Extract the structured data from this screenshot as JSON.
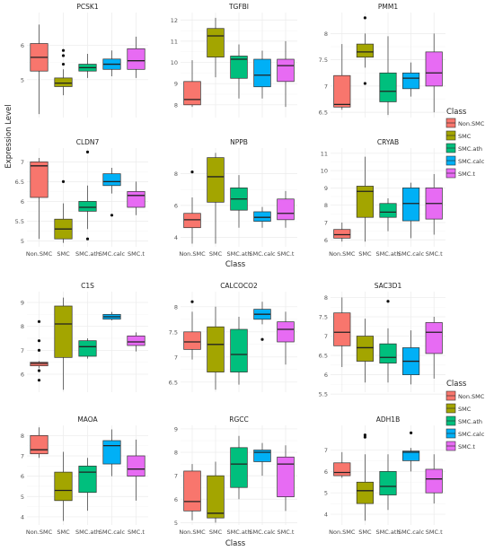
{
  "figure": {
    "y_label": "Expression Level",
    "x_label": "Class",
    "legend_title": "Class"
  },
  "legend": [
    {
      "label": "Non.SMC",
      "color": "#F8766D"
    },
    {
      "label": "SMC",
      "color": "#A3A500"
    },
    {
      "label": "SMC.ath",
      "color": "#00BF7D"
    },
    {
      "label": "SMC.calc",
      "color": "#00B0F6"
    },
    {
      "label": "SMC.t",
      "color": "#E76BF3"
    }
  ],
  "chart_data": [
    {
      "type": "boxplot",
      "title": "PCSK1",
      "categories": [
        "Non.SMC",
        "SMC",
        "SMC.ath",
        "SMC.calc",
        "SMC.t"
      ],
      "y_ticks": [
        5,
        6
      ],
      "ylim": [
        3.9,
        6.95
      ],
      "show_x_ticks": false,
      "boxes": [
        {
          "min": 4.0,
          "q1": 5.25,
          "median": 5.65,
          "q3": 6.05,
          "max": 6.6,
          "outliers": []
        },
        {
          "min": 4.55,
          "q1": 4.8,
          "median": 4.9,
          "q3": 5.05,
          "max": 5.3,
          "outliers": [
            5.85,
            5.7,
            5.45
          ]
        },
        {
          "min": 5.05,
          "q1": 5.25,
          "median": 5.35,
          "q3": 5.45,
          "max": 5.75,
          "outliers": []
        },
        {
          "min": 5.1,
          "q1": 5.3,
          "median": 5.45,
          "q3": 5.6,
          "max": 5.85,
          "outliers": []
        },
        {
          "min": 5.05,
          "q1": 5.3,
          "median": 5.55,
          "q3": 5.9,
          "max": 6.25,
          "outliers": []
        }
      ]
    },
    {
      "type": "boxplot",
      "title": "TGFBI",
      "categories": [
        "Non.SMC",
        "SMC",
        "SMC.ath",
        "SMC.calc",
        "SMC.t"
      ],
      "y_ticks": [
        8,
        9,
        10,
        11,
        12
      ],
      "ylim": [
        7.4,
        12.35
      ],
      "show_x_ticks": false,
      "boxes": [
        {
          "min": 7.9,
          "q1": 8.0,
          "median": 8.25,
          "q3": 9.1,
          "max": 10.1,
          "outliers": []
        },
        {
          "min": 9.3,
          "q1": 10.25,
          "median": 11.25,
          "q3": 11.6,
          "max": 12.1,
          "outliers": []
        },
        {
          "min": 8.3,
          "q1": 9.25,
          "median": 10.15,
          "q3": 10.3,
          "max": 10.85,
          "outliers": []
        },
        {
          "min": 8.3,
          "q1": 8.85,
          "median": 9.4,
          "q3": 10.15,
          "max": 10.55,
          "outliers": []
        },
        {
          "min": 7.9,
          "q1": 9.1,
          "median": 9.85,
          "q3": 10.15,
          "max": 11.0,
          "outliers": []
        }
      ]
    },
    {
      "type": "boxplot",
      "title": "PMM1",
      "categories": [
        "Non.SMC",
        "SMC",
        "SMC.ath",
        "SMC.calc",
        "SMC.t"
      ],
      "y_ticks": [
        6.5,
        7.0,
        7.5,
        8.0
      ],
      "ylim": [
        6.4,
        8.4
      ],
      "show_x_ticks": false,
      "boxes": [
        {
          "min": 6.55,
          "q1": 6.6,
          "median": 6.65,
          "q3": 7.2,
          "max": 7.8,
          "outliers": []
        },
        {
          "min": 7.35,
          "q1": 7.55,
          "median": 7.65,
          "q3": 7.8,
          "max": 8.0,
          "outliers": [
            8.3,
            7.05
          ]
        },
        {
          "min": 6.45,
          "q1": 6.7,
          "median": 6.9,
          "q3": 7.25,
          "max": 7.95,
          "outliers": []
        },
        {
          "min": 6.8,
          "q1": 6.95,
          "median": 7.15,
          "q3": 7.25,
          "max": 7.45,
          "outliers": []
        },
        {
          "min": 6.5,
          "q1": 7.0,
          "median": 7.25,
          "q3": 7.65,
          "max": 8.0,
          "outliers": []
        }
      ]
    },
    {
      "type": "boxplot",
      "title": "CLDN7",
      "categories": [
        "Non.SMC",
        "SMC",
        "SMC.ath",
        "SMC.calc",
        "SMC.t"
      ],
      "y_ticks": [
        5.0,
        5.5,
        6.0,
        6.5,
        7.0
      ],
      "ylim": [
        4.85,
        7.35
      ],
      "show_x_ticks": true,
      "boxes": [
        {
          "min": 5.05,
          "q1": 6.1,
          "median": 6.9,
          "q3": 7.0,
          "max": 7.1,
          "outliers": []
        },
        {
          "min": 4.95,
          "q1": 5.05,
          "median": 5.3,
          "q3": 5.55,
          "max": 5.95,
          "outliers": [
            6.5
          ]
        },
        {
          "min": 5.3,
          "q1": 5.75,
          "median": 5.85,
          "q3": 6.0,
          "max": 6.4,
          "outliers": [
            7.25,
            5.05
          ]
        },
        {
          "min": 6.2,
          "q1": 6.4,
          "median": 6.5,
          "q3": 6.7,
          "max": 6.85,
          "outliers": [
            5.65
          ]
        },
        {
          "min": 5.65,
          "q1": 5.85,
          "median": 6.15,
          "q3": 6.25,
          "max": 6.5,
          "outliers": []
        }
      ]
    },
    {
      "type": "boxplot",
      "title": "NPPB",
      "categories": [
        "Non.SMC",
        "SMC",
        "SMC.ath",
        "SMC.calc",
        "SMC.t"
      ],
      "y_ticks": [
        4,
        6,
        8
      ],
      "ylim": [
        3.4,
        9.6
      ],
      "show_x_ticks": true,
      "boxes": [
        {
          "min": 3.6,
          "q1": 4.6,
          "median": 5.1,
          "q3": 5.5,
          "max": 6.5,
          "outliers": [
            8.1
          ]
        },
        {
          "min": 3.6,
          "q1": 6.2,
          "median": 7.8,
          "q3": 9.0,
          "max": 9.3,
          "outliers": []
        },
        {
          "min": 4.6,
          "q1": 5.7,
          "median": 6.4,
          "q3": 7.1,
          "max": 7.9,
          "outliers": []
        },
        {
          "min": 4.6,
          "q1": 5.0,
          "median": 5.25,
          "q3": 5.6,
          "max": 5.9,
          "outliers": []
        },
        {
          "min": 4.6,
          "q1": 5.1,
          "median": 5.5,
          "q3": 6.4,
          "max": 6.9,
          "outliers": []
        }
      ]
    },
    {
      "type": "boxplot",
      "title": "CRYAB",
      "categories": [
        "Non.SMC",
        "SMC",
        "SMC.ath",
        "SMC.calc",
        "SMC.t"
      ],
      "y_ticks": [
        6,
        7,
        8,
        9,
        10,
        11
      ],
      "ylim": [
        5.6,
        11.3
      ],
      "show_x_ticks": true,
      "boxes": [
        {
          "min": 5.9,
          "q1": 6.1,
          "median": 6.3,
          "q3": 6.6,
          "max": 7.0,
          "outliers": []
        },
        {
          "min": 5.9,
          "q1": 7.3,
          "median": 8.8,
          "q3": 9.1,
          "max": 10.8,
          "outliers": []
        },
        {
          "min": 6.5,
          "q1": 7.3,
          "median": 7.6,
          "q3": 8.1,
          "max": 8.4,
          "outliers": []
        },
        {
          "min": 6.1,
          "q1": 7.1,
          "median": 8.1,
          "q3": 9.0,
          "max": 9.3,
          "outliers": []
        },
        {
          "min": 6.3,
          "q1": 7.2,
          "median": 8.1,
          "q3": 9.0,
          "max": 9.8,
          "outliers": []
        }
      ]
    },
    {
      "type": "boxplot",
      "title": "C1S",
      "categories": [
        "Non.SMC",
        "SMC",
        "SMC.ath",
        "SMC.calc",
        "SMC.t"
      ],
      "y_ticks": [
        6,
        7,
        8,
        9
      ],
      "ylim": [
        5.25,
        9.45
      ],
      "show_x_ticks": false,
      "boxes": [
        {
          "min": 6.25,
          "q1": 6.35,
          "median": 6.45,
          "q3": 6.5,
          "max": 6.55,
          "outliers": [
            8.2,
            7.4,
            7.0,
            6.15,
            5.75
          ]
        },
        {
          "min": 5.35,
          "q1": 6.7,
          "median": 8.1,
          "q3": 8.85,
          "max": 9.2,
          "outliers": []
        },
        {
          "min": 6.65,
          "q1": 6.75,
          "median": 7.15,
          "q3": 7.4,
          "max": 7.5,
          "outliers": []
        },
        {
          "min": 8.25,
          "q1": 8.3,
          "median": 8.4,
          "q3": 8.5,
          "max": 8.6,
          "outliers": []
        },
        {
          "min": 6.95,
          "q1": 7.2,
          "median": 7.35,
          "q3": 7.6,
          "max": 7.75,
          "outliers": []
        }
      ]
    },
    {
      "type": "boxplot",
      "title": "CALCOCO2",
      "categories": [
        "Non.SMC",
        "SMC",
        "SMC.ath",
        "SMC.calc",
        "SMC.t"
      ],
      "y_ticks": [
        6.5,
        7.0,
        7.5,
        8.0
      ],
      "ylim": [
        6.3,
        8.3
      ],
      "show_x_ticks": false,
      "boxes": [
        {
          "min": 6.95,
          "q1": 7.15,
          "median": 7.3,
          "q3": 7.5,
          "max": 7.9,
          "outliers": [
            8.1
          ]
        },
        {
          "min": 6.35,
          "q1": 6.7,
          "median": 7.25,
          "q3": 7.6,
          "max": 8.0,
          "outliers": []
        },
        {
          "min": 6.45,
          "q1": 6.7,
          "median": 7.05,
          "q3": 7.55,
          "max": 7.8,
          "outliers": []
        },
        {
          "min": 7.65,
          "q1": 7.75,
          "median": 7.85,
          "q3": 7.95,
          "max": 8.1,
          "outliers": [
            7.35
          ]
        },
        {
          "min": 6.85,
          "q1": 7.3,
          "median": 7.55,
          "q3": 7.7,
          "max": 7.9,
          "outliers": []
        }
      ]
    },
    {
      "type": "boxplot",
      "title": "SAC3D1",
      "categories": [
        "Non.SMC",
        "SMC",
        "SMC.ath",
        "SMC.calc",
        "SMC.t"
      ],
      "y_ticks": [
        5.5,
        6.0,
        6.5,
        7.0,
        7.5,
        8.0
      ],
      "ylim": [
        5.55,
        8.15
      ],
      "show_x_ticks": false,
      "boxes": [
        {
          "min": 6.2,
          "q1": 6.75,
          "median": 7.1,
          "q3": 7.6,
          "max": 8.0,
          "outliers": []
        },
        {
          "min": 5.8,
          "q1": 6.35,
          "median": 6.7,
          "q3": 7.0,
          "max": 7.45,
          "outliers": []
        },
        {
          "min": 5.8,
          "q1": 6.3,
          "median": 6.45,
          "q3": 6.8,
          "max": 7.2,
          "outliers": [
            7.9
          ]
        },
        {
          "min": 5.75,
          "q1": 6.0,
          "median": 6.35,
          "q3": 6.7,
          "max": 7.15,
          "outliers": []
        },
        {
          "min": 5.9,
          "q1": 6.55,
          "median": 7.1,
          "q3": 7.35,
          "max": 7.5,
          "outliers": []
        }
      ]
    },
    {
      "type": "boxplot",
      "title": "MAOA",
      "categories": [
        "Non.SMC",
        "SMC",
        "SMC.ath",
        "SMC.calc",
        "SMC.t"
      ],
      "y_ticks": [
        4,
        5,
        6,
        7,
        8
      ],
      "ylim": [
        3.6,
        8.5
      ],
      "show_x_ticks": true,
      "boxes": [
        {
          "min": 6.9,
          "q1": 7.1,
          "median": 7.3,
          "q3": 8.0,
          "max": 8.4,
          "outliers": []
        },
        {
          "min": 3.8,
          "q1": 4.8,
          "median": 5.3,
          "q3": 6.2,
          "max": 7.2,
          "outliers": []
        },
        {
          "min": 4.3,
          "q1": 5.2,
          "median": 6.2,
          "q3": 6.5,
          "max": 6.9,
          "outliers": []
        },
        {
          "min": 6.0,
          "q1": 6.6,
          "median": 7.5,
          "q3": 7.75,
          "max": 8.3,
          "outliers": []
        },
        {
          "min": 4.8,
          "q1": 6.0,
          "median": 6.35,
          "q3": 7.0,
          "max": 7.8,
          "outliers": []
        }
      ]
    },
    {
      "type": "boxplot",
      "title": "RGCC",
      "categories": [
        "Non.SMC",
        "SMC",
        "SMC.ath",
        "SMC.calc",
        "SMC.t"
      ],
      "y_ticks": [
        5,
        6,
        7,
        8,
        9
      ],
      "ylim": [
        4.9,
        9.15
      ],
      "show_x_ticks": true,
      "boxes": [
        {
          "min": 5.1,
          "q1": 5.5,
          "median": 5.9,
          "q3": 7.2,
          "max": 7.5,
          "outliers": []
        },
        {
          "min": 5.0,
          "q1": 5.2,
          "median": 5.4,
          "q3": 7.0,
          "max": 7.6,
          "outliers": []
        },
        {
          "min": 6.0,
          "q1": 6.5,
          "median": 7.5,
          "q3": 8.2,
          "max": 8.7,
          "outliers": []
        },
        {
          "min": 7.0,
          "q1": 7.6,
          "median": 8.0,
          "q3": 8.1,
          "max": 8.4,
          "outliers": []
        },
        {
          "min": 5.5,
          "q1": 6.1,
          "median": 7.5,
          "q3": 7.8,
          "max": 8.3,
          "outliers": []
        }
      ]
    },
    {
      "type": "boxplot",
      "title": "ADH1B",
      "categories": [
        "Non.SMC",
        "SMC",
        "SMC.ath",
        "SMC.calc",
        "SMC.t"
      ],
      "y_ticks": [
        4,
        5,
        6,
        7
      ],
      "ylim": [
        3.5,
        8.15
      ],
      "show_x_ticks": true,
      "boxes": [
        {
          "min": 5.7,
          "q1": 5.8,
          "median": 5.95,
          "q3": 6.4,
          "max": 6.9,
          "outliers": []
        },
        {
          "min": 3.7,
          "q1": 4.5,
          "median": 5.1,
          "q3": 5.5,
          "max": 6.8,
          "outliers": [
            7.7,
            7.6
          ]
        },
        {
          "min": 4.2,
          "q1": 4.9,
          "median": 5.3,
          "q3": 6.0,
          "max": 6.8,
          "outliers": []
        },
        {
          "min": 6.0,
          "q1": 6.5,
          "median": 6.9,
          "q3": 6.95,
          "max": 7.1,
          "outliers": [
            7.8
          ]
        },
        {
          "min": 4.5,
          "q1": 5.0,
          "median": 5.65,
          "q3": 6.1,
          "max": 6.8,
          "outliers": []
        }
      ]
    }
  ]
}
